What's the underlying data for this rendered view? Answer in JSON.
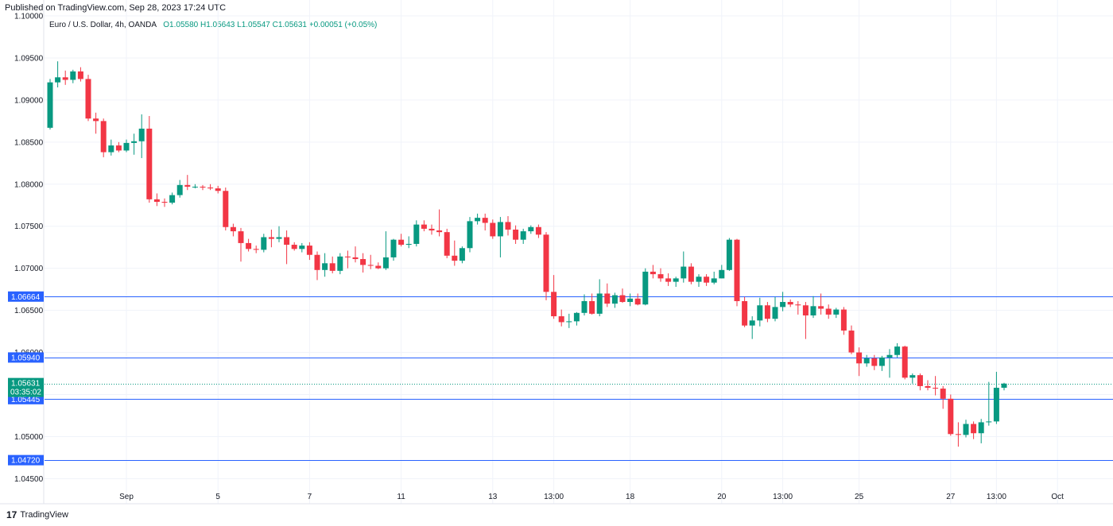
{
  "header": {
    "published": "Published on TradingView.com, Sep 28, 2023 17:24 UTC"
  },
  "legend": {
    "symbol": "Euro / U.S. Dollar, 4h, OANDA",
    "ohlc": "O1.05580 H1.05643 L1.05547 C1.05631 +0.00051 (+0.05%)"
  },
  "footer": {
    "logo": "17",
    "brand": "TradingView"
  },
  "colors": {
    "up": "#089981",
    "down": "#f23645",
    "level_line": "#2962ff",
    "grid": "#f0f3fa",
    "price_tag": "#089981"
  },
  "chart_data": {
    "type": "candlestick",
    "symbol": "EURUSD",
    "timeframe": "4h",
    "ylim": [
      1.044,
      1.1
    ],
    "yticks": [
      1.045,
      1.05,
      1.055,
      1.06,
      1.065,
      1.07,
      1.075,
      1.08,
      1.085,
      1.09,
      1.095,
      1.1
    ],
    "ytick_labels": [
      "1.04500",
      "1.05000",
      "1.05500",
      "1.06000",
      "1.06500",
      "1.07000",
      "1.07500",
      "1.08000",
      "1.08500",
      "1.09000",
      "1.09500",
      "1.10000"
    ],
    "xlim": [
      0,
      134
    ],
    "xticks": [
      {
        "label": "Sep",
        "index": 10
      },
      {
        "label": "5",
        "index": 22
      },
      {
        "label": "7",
        "index": 34
      },
      {
        "label": "11",
        "index": 46
      },
      {
        "label": "13",
        "index": 58
      },
      {
        "label": "13:00",
        "index": 66
      },
      {
        "label": "18",
        "index": 76
      },
      {
        "label": "20",
        "index": 88
      },
      {
        "label": "13:00",
        "index": 96
      },
      {
        "label": "25",
        "index": 106
      },
      {
        "label": "27",
        "index": 118
      },
      {
        "label": "13:00",
        "index": 124
      },
      {
        "label": "Oct",
        "index": 132
      }
    ],
    "horizontal_levels": [
      {
        "value": 1.06664,
        "label": "1.06664"
      },
      {
        "value": 1.0594,
        "label": "1.05940"
      },
      {
        "value": 1.05445,
        "label": "1.05445"
      },
      {
        "value": 1.0472,
        "label": "1.04720"
      }
    ],
    "last_price": {
      "value": 1.05631,
      "label": "1.05631",
      "countdown": "03:35:02"
    },
    "candles": [
      [
        1.0867,
        1.0925,
        1.0865,
        1.0921
      ],
      [
        1.0921,
        1.0946,
        1.0915,
        1.0927
      ],
      [
        1.0927,
        1.0935,
        1.0918,
        1.0924
      ],
      [
        1.0924,
        1.0936,
        1.092,
        1.0934
      ],
      [
        1.0934,
        1.0939,
        1.0922,
        1.0925
      ],
      [
        1.0925,
        1.093,
        1.0875,
        1.0878
      ],
      [
        1.0878,
        1.0885,
        1.086,
        1.0875
      ],
      [
        1.0875,
        1.0878,
        1.0832,
        1.0838
      ],
      [
        1.0838,
        1.0853,
        1.0834,
        1.0846
      ],
      [
        1.0846,
        1.085,
        1.0838,
        1.084
      ],
      [
        1.084,
        1.0853,
        1.0838,
        1.0849
      ],
      [
        1.0849,
        1.086,
        1.0835,
        1.0851
      ],
      [
        1.0851,
        1.0883,
        1.0831,
        1.0866
      ],
      [
        1.0866,
        1.0881,
        1.0778,
        1.0782
      ],
      [
        1.0782,
        1.0789,
        1.0774,
        1.0779
      ],
      [
        1.0779,
        1.0783,
        1.0773,
        1.0778
      ],
      [
        1.0778,
        1.079,
        1.0776,
        1.0787
      ],
      [
        1.0787,
        1.0805,
        1.0784,
        1.0799
      ],
      [
        1.0799,
        1.0811,
        1.0793,
        1.0797
      ],
      [
        1.0797,
        1.08,
        1.0795,
        1.0797
      ],
      [
        1.0797,
        1.0799,
        1.0793,
        1.0796
      ],
      [
        1.0796,
        1.08,
        1.0793,
        1.0795
      ],
      [
        1.0795,
        1.0798,
        1.0789,
        1.0792
      ],
      [
        1.0792,
        1.0796,
        1.0745,
        1.0749
      ],
      [
        1.0749,
        1.0753,
        1.0738,
        1.0744
      ],
      [
        1.0744,
        1.0748,
        1.0708,
        1.073
      ],
      [
        1.073,
        1.0735,
        1.072,
        1.0723
      ],
      [
        1.0723,
        1.0727,
        1.0718,
        1.0722
      ],
      [
        1.0722,
        1.0741,
        1.0719,
        1.0737
      ],
      [
        1.0737,
        1.0746,
        1.0725,
        1.0735
      ],
      [
        1.0735,
        1.075,
        1.0731,
        1.0737
      ],
      [
        1.0737,
        1.0745,
        1.0705,
        1.0728
      ],
      [
        1.0728,
        1.0731,
        1.0721,
        1.0723
      ],
      [
        1.0723,
        1.073,
        1.0719,
        1.0727
      ],
      [
        1.0727,
        1.0731,
        1.071,
        1.0716
      ],
      [
        1.0716,
        1.072,
        1.0686,
        1.0698
      ],
      [
        1.0698,
        1.0718,
        1.069,
        1.0706
      ],
      [
        1.0706,
        1.0714,
        1.0694,
        1.0697
      ],
      [
        1.0697,
        1.0718,
        1.0693,
        1.0714
      ],
      [
        1.0714,
        1.0721,
        1.07,
        1.0713
      ],
      [
        1.0713,
        1.0726,
        1.0707,
        1.0711
      ],
      [
        1.0711,
        1.0718,
        1.0695,
        1.0704
      ],
      [
        1.0704,
        1.0716,
        1.0699,
        1.0703
      ],
      [
        1.0703,
        1.0707,
        1.0699,
        1.07
      ],
      [
        1.07,
        1.0744,
        1.0698,
        1.0713
      ],
      [
        1.0713,
        1.0735,
        1.0709,
        1.0734
      ],
      [
        1.0734,
        1.0741,
        1.0726,
        1.0728
      ],
      [
        1.0728,
        1.0738,
        1.0724,
        1.0729
      ],
      [
        1.0729,
        1.0757,
        1.0726,
        1.0752
      ],
      [
        1.0752,
        1.0757,
        1.0744,
        1.0747
      ],
      [
        1.0747,
        1.0752,
        1.074,
        1.0745
      ],
      [
        1.0745,
        1.077,
        1.0738,
        1.0743
      ],
      [
        1.0743,
        1.0747,
        1.0712,
        1.0715
      ],
      [
        1.0715,
        1.0733,
        1.0703,
        1.0709
      ],
      [
        1.0709,
        1.0726,
        1.0706,
        1.0724
      ],
      [
        1.0724,
        1.0761,
        1.0719,
        1.0756
      ],
      [
        1.0756,
        1.0765,
        1.0752,
        1.076
      ],
      [
        1.076,
        1.0765,
        1.0745,
        1.0754
      ],
      [
        1.0754,
        1.0758,
        1.0735,
        1.0738
      ],
      [
        1.0738,
        1.0761,
        1.0713,
        1.0755
      ],
      [
        1.0755,
        1.0762,
        1.0739,
        1.0746
      ],
      [
        1.0746,
        1.0751,
        1.0729,
        1.0734
      ],
      [
        1.0734,
        1.0747,
        1.0729,
        1.0744
      ],
      [
        1.0744,
        1.0751,
        1.0741,
        1.0749
      ],
      [
        1.0749,
        1.0752,
        1.0736,
        1.074
      ],
      [
        1.074,
        1.0743,
        1.0662,
        1.0672
      ],
      [
        1.0672,
        1.0692,
        1.064,
        1.0643
      ],
      [
        1.0643,
        1.0651,
        1.0631,
        1.0636
      ],
      [
        1.0636,
        1.0646,
        1.0629,
        1.0637
      ],
      [
        1.0637,
        1.0648,
        1.0632,
        1.0647
      ],
      [
        1.0647,
        1.0669,
        1.0644,
        1.0661
      ],
      [
        1.0661,
        1.067,
        1.0645,
        1.0646
      ],
      [
        1.0646,
        1.0687,
        1.0643,
        1.067
      ],
      [
        1.067,
        1.0682,
        1.0654,
        1.0658
      ],
      [
        1.0658,
        1.0671,
        1.0653,
        1.0668
      ],
      [
        1.0668,
        1.0676,
        1.0659,
        1.066
      ],
      [
        1.066,
        1.067,
        1.0655,
        1.0664
      ],
      [
        1.0664,
        1.067,
        1.0656,
        1.0657
      ],
      [
        1.0657,
        1.07,
        1.0656,
        1.0696
      ],
      [
        1.0696,
        1.0704,
        1.0688,
        1.0693
      ],
      [
        1.0693,
        1.07,
        1.0684,
        1.0688
      ],
      [
        1.0688,
        1.0694,
        1.0679,
        1.0684
      ],
      [
        1.0684,
        1.069,
        1.0678,
        1.0688
      ],
      [
        1.0688,
        1.072,
        1.0683,
        1.0702
      ],
      [
        1.0702,
        1.0706,
        1.0681,
        1.0684
      ],
      [
        1.0684,
        1.0693,
        1.0678,
        1.069
      ],
      [
        1.069,
        1.0693,
        1.0679,
        1.0683
      ],
      [
        1.0683,
        1.0696,
        1.0681,
        1.0688
      ],
      [
        1.0688,
        1.0704,
        1.0688,
        1.0698
      ],
      [
        1.0698,
        1.0736,
        1.0697,
        1.0734
      ],
      [
        1.0734,
        1.0735,
        1.0655,
        1.0661
      ],
      [
        1.0661,
        1.0666,
        1.063,
        1.0632
      ],
      [
        1.0632,
        1.0643,
        1.0616,
        1.0638
      ],
      [
        1.0638,
        1.0665,
        1.0631,
        1.0656
      ],
      [
        1.0656,
        1.066,
        1.0636,
        1.064
      ],
      [
        1.064,
        1.0666,
        1.0637,
        1.0654
      ],
      [
        1.0654,
        1.0672,
        1.0649,
        1.066
      ],
      [
        1.066,
        1.0663,
        1.0654,
        1.0657
      ],
      [
        1.0657,
        1.0661,
        1.0645,
        1.0656
      ],
      [
        1.0656,
        1.066,
        1.0616,
        1.0644
      ],
      [
        1.0644,
        1.0667,
        1.0641,
        1.0655
      ],
      [
        1.0655,
        1.067,
        1.0645,
        1.0652
      ],
      [
        1.0652,
        1.0657,
        1.064,
        1.0645
      ],
      [
        1.0645,
        1.0653,
        1.0641,
        1.0651
      ],
      [
        1.0651,
        1.0654,
        1.0621,
        1.0626
      ],
      [
        1.0626,
        1.0632,
        1.0598,
        1.06
      ],
      [
        1.06,
        1.0606,
        1.0572,
        1.0587
      ],
      [
        1.0587,
        1.0597,
        1.0583,
        1.0593
      ],
      [
        1.0593,
        1.0597,
        1.0579,
        1.0584
      ],
      [
        1.0584,
        1.0596,
        1.0578,
        1.0594
      ],
      [
        1.0594,
        1.0604,
        1.057,
        1.0597
      ],
      [
        1.0597,
        1.0611,
        1.0594,
        1.0607
      ],
      [
        1.0607,
        1.0608,
        1.0568,
        1.057
      ],
      [
        1.057,
        1.0575,
        1.0563,
        1.0573
      ],
      [
        1.0573,
        1.0575,
        1.0555,
        1.056
      ],
      [
        1.056,
        1.0567,
        1.0555,
        1.0558
      ],
      [
        1.0558,
        1.0572,
        1.0549,
        1.0557
      ],
      [
        1.0557,
        1.056,
        1.0533,
        1.0545
      ],
      [
        1.0545,
        1.055,
        1.0501,
        1.0503
      ],
      [
        1.0503,
        1.0517,
        1.0488,
        1.0502
      ],
      [
        1.0502,
        1.052,
        1.0499,
        1.0515
      ],
      [
        1.0515,
        1.0518,
        1.0497,
        1.0504
      ],
      [
        1.0504,
        1.0521,
        1.0492,
        1.0517
      ],
      [
        1.0517,
        1.0565,
        1.0513,
        1.0518
      ],
      [
        1.0518,
        1.0577,
        1.0515,
        1.0558
      ],
      [
        1.0558,
        1.0564,
        1.0555,
        1.0563
      ]
    ]
  }
}
